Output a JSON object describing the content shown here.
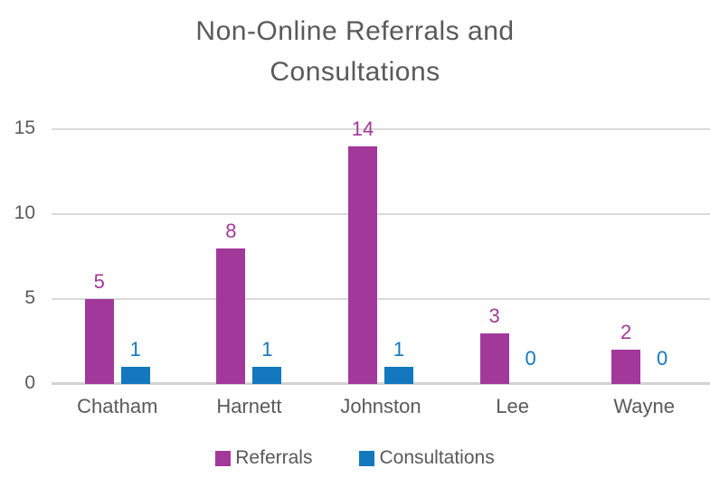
{
  "chart_data": {
    "type": "bar",
    "title": "Non-Online Referrals and Consultations",
    "categories": [
      "Chatham",
      "Harnett",
      "Johnston",
      "Lee",
      "Wayne"
    ],
    "series": [
      {
        "name": "Referrals",
        "color": "#A3389B",
        "values": [
          5,
          8,
          14,
          3,
          2
        ]
      },
      {
        "name": "Consultations",
        "color": "#1478BE",
        "values": [
          1,
          1,
          1,
          0,
          0
        ]
      }
    ],
    "xlabel": "",
    "ylabel": "",
    "ylim": [
      0,
      15
    ],
    "yticks": [
      0,
      5,
      10,
      15
    ],
    "grid": true,
    "legend_position": "bottom",
    "data_labels": true
  },
  "colors": {
    "text": "#595959",
    "gridline": "#D9D9D9",
    "baseline": "#D2D2D2",
    "background": "#FFFFFF"
  }
}
